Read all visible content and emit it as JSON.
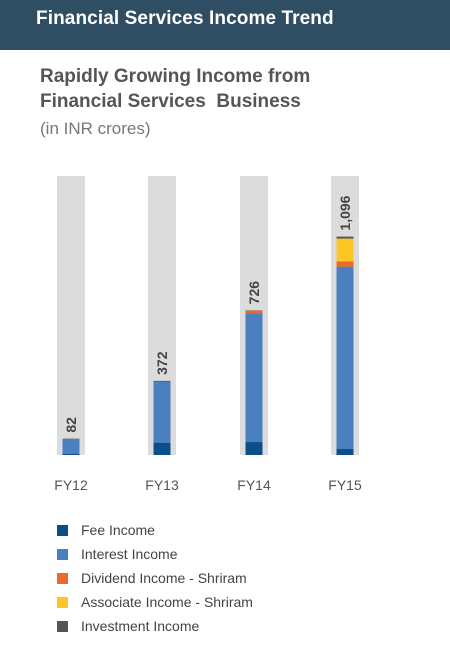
{
  "header": {
    "title": "Financial Services Income Trend"
  },
  "subtitle": {
    "line1": "Rapidly Growing Income from",
    "line2": "Financial Services  Business",
    "unit": "(in INR crores)"
  },
  "colors": {
    "header_bg": "#2f4d63",
    "bar_track": "#dcdcdd",
    "fee": "#0b4e8a",
    "interest": "#4a7fc0",
    "dividend": "#e96b27",
    "associate": "#fdc526",
    "investment": "#555555"
  },
  "chart_data": {
    "type": "bar",
    "stacked": true,
    "categories": [
      "FY12",
      "FY13",
      "FY14",
      "FY15"
    ],
    "totals_labels": [
      "82",
      "372",
      "726",
      "1,096"
    ],
    "totals": [
      82,
      372,
      726,
      1096
    ],
    "ylim": [
      0,
      1400
    ],
    "series": [
      {
        "name": "Fee Income",
        "color": "#0b4e8a",
        "values": [
          5,
          62,
          65,
          30
        ]
      },
      {
        "name": "Interest Income",
        "color": "#4a7fc0",
        "values": [
          75,
          305,
          645,
          915
        ]
      },
      {
        "name": "Dividend Income - Shriram",
        "color": "#e96b27",
        "values": [
          0,
          0,
          14,
          26
        ]
      },
      {
        "name": "Associate Income - Shriram",
        "color": "#fdc526",
        "values": [
          0,
          0,
          0,
          115
        ]
      },
      {
        "name": "Investment Income",
        "color": "#555555",
        "values": [
          2,
          5,
          2,
          10
        ]
      }
    ]
  }
}
